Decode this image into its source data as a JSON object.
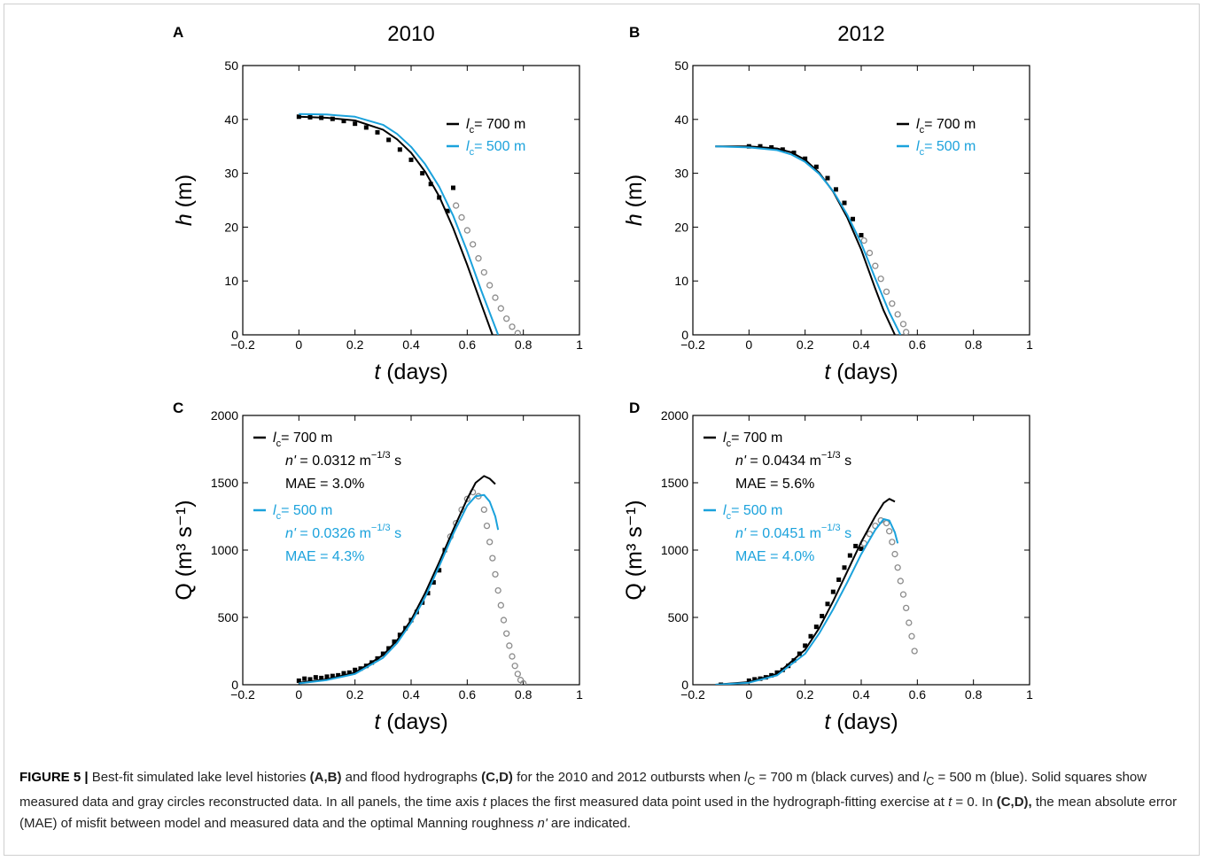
{
  "colors": {
    "black_curve": "#000000",
    "blue_curve": "#1ba2dc",
    "reconstructed": "#8c8c8c",
    "measured": "#000000"
  },
  "caption": {
    "label": "FIGURE 5 |",
    "s1": " Best-fit simulated lake level histories ",
    "p1": "(A,B)",
    "s2": " and flood hydrographs ",
    "p2": "(C,D)",
    "s3": " for the 2010 and 2012 outbursts when ",
    "l1": "l",
    "sub1": "C",
    "s4": " = 700 m (black curves) and ",
    "l2": "l",
    "sub2": "C",
    "s5": " = 500 m (blue). Solid squares show measured data and gray circles reconstructed data. In all panels, the time axis ",
    "t1": "t",
    "s6": " places the first measured data point used in the hydrograph-fitting exercise at ",
    "t2": "t",
    "s7": " = 0. In ",
    "p3": "(C,D),",
    "s8": " the mean absolute error (MAE) of misfit between model and measured data and the optimal Manning roughness ",
    "n1": "n'",
    "s9": " are indicated."
  },
  "chart_data": [
    {
      "panel": "A",
      "title": "2010",
      "type": "line",
      "xlabel_italic": "t",
      "xlabel_rest": " (days)",
      "ylabel_italic": "h",
      "ylabel_rest": " (m)",
      "xlim": [
        -0.2,
        1
      ],
      "ylim": [
        0,
        50
      ],
      "xticks": [
        "−0.2",
        "0",
        "0.2",
        "0.4",
        "0.6",
        "0.8",
        "1"
      ],
      "xtick_values": [
        -0.2,
        0,
        0.2,
        0.4,
        0.6,
        0.8,
        1
      ],
      "yticks": [
        "0",
        "10",
        "20",
        "30",
        "40",
        "50"
      ],
      "ytick_values": [
        0,
        10,
        20,
        30,
        40,
        50
      ],
      "legend": [
        {
          "l": "l",
          "sub": "c",
          "rest": "= 700 m",
          "color": "#000000"
        },
        {
          "l": "l",
          "sub": "c",
          "rest": "= 500 m",
          "color": "#1ba2dc"
        }
      ],
      "series": [
        {
          "name": "l_c = 700 m",
          "color": "#000000",
          "x": [
            0,
            0.1,
            0.2,
            0.3,
            0.35,
            0.4,
            0.45,
            0.5,
            0.55,
            0.6,
            0.65,
            0.69
          ],
          "y": [
            40.5,
            40.3,
            39.8,
            38.1,
            36.3,
            33.8,
            30.3,
            25.7,
            19.8,
            13,
            5.7,
            0
          ]
        },
        {
          "name": "l_c = 500 m",
          "color": "#1ba2dc",
          "x": [
            0,
            0.1,
            0.2,
            0.3,
            0.35,
            0.4,
            0.45,
            0.5,
            0.55,
            0.6,
            0.65,
            0.71
          ],
          "y": [
            41,
            40.9,
            40.5,
            39,
            37.3,
            34.9,
            31.7,
            27.5,
            22.1,
            15.5,
            8.2,
            0
          ]
        }
      ],
      "measured": {
        "x": [
          0,
          0.04,
          0.08,
          0.12,
          0.16,
          0.2,
          0.24,
          0.28,
          0.32,
          0.36,
          0.4,
          0.44,
          0.47,
          0.5,
          0.53,
          0.55
        ],
        "y": [
          40.5,
          40.4,
          40.3,
          40.1,
          39.7,
          39.2,
          38.5,
          37.6,
          36.2,
          34.4,
          32.5,
          30,
          28,
          25.5,
          23,
          27.3
        ]
      },
      "reconstructed": {
        "x": [
          0.56,
          0.58,
          0.6,
          0.62,
          0.64,
          0.66,
          0.68,
          0.7,
          0.72,
          0.74,
          0.76,
          0.78
        ],
        "y": [
          24,
          21.8,
          19.4,
          16.8,
          14.2,
          11.6,
          9.2,
          6.9,
          4.9,
          3,
          1.5,
          0.3
        ]
      }
    },
    {
      "panel": "B",
      "title": "2012",
      "type": "line",
      "xlabel_italic": "t",
      "xlabel_rest": " (days)",
      "ylabel_italic": "h",
      "ylabel_rest": " (m)",
      "xlim": [
        -0.2,
        1
      ],
      "ylim": [
        0,
        50
      ],
      "xticks": [
        "−0.2",
        "0",
        "0.2",
        "0.4",
        "0.6",
        "0.8",
        "1"
      ],
      "xtick_values": [
        -0.2,
        0,
        0.2,
        0.4,
        0.6,
        0.8,
        1
      ],
      "yticks": [
        "0",
        "10",
        "20",
        "30",
        "40",
        "50"
      ],
      "ytick_values": [
        0,
        10,
        20,
        30,
        40,
        50
      ],
      "legend": [
        {
          "l": "l",
          "sub": "c",
          "rest": "= 700 m",
          "color": "#000000"
        },
        {
          "l": "l",
          "sub": "c",
          "rest": "= 500 m",
          "color": "#1ba2dc"
        }
      ],
      "series": [
        {
          "name": "l_c = 700 m",
          "color": "#000000",
          "x": [
            -0.12,
            0,
            0.1,
            0.15,
            0.2,
            0.25,
            0.3,
            0.35,
            0.4,
            0.45,
            0.48,
            0.52
          ],
          "y": [
            35,
            35,
            34.6,
            33.9,
            32.5,
            30.1,
            26.6,
            21.8,
            15.8,
            8.6,
            4.5,
            0
          ]
        },
        {
          "name": "l_c = 500 m",
          "color": "#1ba2dc",
          "x": [
            -0.12,
            0,
            0.1,
            0.15,
            0.2,
            0.25,
            0.3,
            0.35,
            0.4,
            0.45,
            0.5,
            0.54
          ],
          "y": [
            35,
            34.8,
            34.3,
            33.5,
            32.1,
            29.9,
            26.7,
            22.3,
            17,
            10.5,
            4.2,
            0
          ]
        }
      ],
      "measured": {
        "x": [
          0,
          0.04,
          0.08,
          0.12,
          0.16,
          0.2,
          0.24,
          0.28,
          0.31,
          0.34,
          0.37,
          0.4
        ],
        "y": [
          35,
          35,
          34.8,
          34.4,
          33.8,
          32.7,
          31.2,
          29.1,
          27,
          24.5,
          21.5,
          18.5
        ]
      },
      "reconstructed": {
        "x": [
          0.41,
          0.43,
          0.45,
          0.47,
          0.49,
          0.51,
          0.53,
          0.55,
          0.56
        ],
        "y": [
          17.5,
          15.2,
          12.8,
          10.4,
          8,
          5.8,
          3.8,
          2,
          0.5
        ]
      }
    },
    {
      "panel": "C",
      "type": "line",
      "xlabel_italic": "t",
      "xlabel_rest": " (days)",
      "ylabel": "Q (m³ s⁻¹)",
      "xlim": [
        -0.2,
        1
      ],
      "ylim": [
        0,
        2000
      ],
      "xticks": [
        "−0.2",
        "0",
        "0.2",
        "0.4",
        "0.6",
        "0.8",
        "1"
      ],
      "xtick_values": [
        -0.2,
        0,
        0.2,
        0.4,
        0.6,
        0.8,
        1
      ],
      "yticks": [
        "0",
        "500",
        "1000",
        "1500",
        "2000"
      ],
      "ytick_values": [
        0,
        500,
        1000,
        1500,
        2000
      ],
      "annotations": [
        {
          "l": "l",
          "sub": "c",
          "rest": "= 700 m",
          "n": "n'",
          "n_val": " = 0.0312 m",
          "n_exp": "−1/3",
          "n_unit": " s",
          "mae": "MAE = 3.0%",
          "color": "#000000"
        },
        {
          "l": "l",
          "sub": "c",
          "rest": "= 500 m",
          "n": "n'",
          "n_val": " = 0.0326 m",
          "n_exp": "−1/3",
          "n_unit": " s",
          "mae": "MAE = 4.3%",
          "color": "#1ba2dc"
        }
      ],
      "series": [
        {
          "name": "l_c = 700 m",
          "color": "#000000",
          "x": [
            0,
            0.1,
            0.2,
            0.3,
            0.35,
            0.4,
            0.45,
            0.5,
            0.55,
            0.6,
            0.63,
            0.66,
            0.68,
            0.7
          ],
          "y": [
            15,
            40,
            90,
            220,
            330,
            480,
            680,
            910,
            1150,
            1380,
            1500,
            1550,
            1530,
            1490
          ]
        },
        {
          "name": "l_c = 500 m",
          "color": "#1ba2dc",
          "x": [
            0,
            0.1,
            0.2,
            0.3,
            0.35,
            0.4,
            0.45,
            0.5,
            0.55,
            0.6,
            0.63,
            0.66,
            0.68,
            0.7,
            0.71
          ],
          "y": [
            10,
            35,
            80,
            200,
            310,
            460,
            650,
            880,
            1120,
            1330,
            1400,
            1410,
            1360,
            1250,
            1150
          ]
        }
      ],
      "measured": {
        "x": [
          0,
          0.02,
          0.04,
          0.06,
          0.08,
          0.1,
          0.12,
          0.14,
          0.16,
          0.18,
          0.2,
          0.22,
          0.24,
          0.26,
          0.28,
          0.3,
          0.32,
          0.34,
          0.36,
          0.38,
          0.4,
          0.42,
          0.44,
          0.46,
          0.48,
          0.5,
          0.52
        ],
        "y": [
          30,
          45,
          40,
          55,
          50,
          60,
          65,
          70,
          85,
          90,
          110,
          120,
          140,
          165,
          195,
          230,
          270,
          320,
          370,
          420,
          480,
          540,
          610,
          680,
          760,
          850,
          1000
        ]
      },
      "reconstructed": {
        "x": [
          0.54,
          0.56,
          0.58,
          0.6,
          0.62,
          0.64,
          0.66,
          0.67,
          0.68,
          0.69,
          0.7,
          0.71,
          0.72,
          0.73,
          0.74,
          0.75,
          0.76,
          0.77,
          0.78,
          0.79,
          0.8
        ],
        "y": [
          1100,
          1200,
          1300,
          1380,
          1430,
          1400,
          1300,
          1180,
          1060,
          940,
          820,
          700,
          590,
          480,
          380,
          290,
          210,
          140,
          80,
          35,
          10
        ]
      }
    },
    {
      "panel": "D",
      "type": "line",
      "xlabel_italic": "t",
      "xlabel_rest": " (days)",
      "ylabel": "Q (m³ s⁻¹)",
      "xlim": [
        -0.2,
        1
      ],
      "ylim": [
        0,
        2000
      ],
      "xticks": [
        "−0.2",
        "0",
        "0.2",
        "0.4",
        "0.6",
        "0.8",
        "1"
      ],
      "xtick_values": [
        -0.2,
        0,
        0.2,
        0.4,
        0.6,
        0.8,
        1
      ],
      "yticks": [
        "0",
        "500",
        "1000",
        "1500",
        "2000"
      ],
      "ytick_values": [
        0,
        500,
        1000,
        1500,
        2000
      ],
      "annotations": [
        {
          "l": "l",
          "sub": "c",
          "rest": "= 700 m",
          "n": "n'",
          "n_val": " = 0.0434 m",
          "n_exp": "−1/3",
          "n_unit": " s",
          "mae": "MAE = 5.6%",
          "color": "#000000"
        },
        {
          "l": "l",
          "sub": "c",
          "rest": "= 500 m",
          "n": "n'",
          "n_val": " = 0.0451 m",
          "n_exp": "−1/3",
          "n_unit": " s",
          "mae": "MAE = 4.0%",
          "color": "#1ba2dc"
        }
      ],
      "series": [
        {
          "name": "l_c = 700 m",
          "color": "#000000",
          "x": [
            -0.12,
            0,
            0.1,
            0.2,
            0.25,
            0.3,
            0.35,
            0.4,
            0.45,
            0.48,
            0.5,
            0.52
          ],
          "y": [
            0,
            20,
            80,
            260,
            420,
            620,
            840,
            1060,
            1250,
            1350,
            1380,
            1360
          ]
        },
        {
          "name": "l_c = 500 m",
          "color": "#1ba2dc",
          "x": [
            -0.12,
            0,
            0.1,
            0.2,
            0.25,
            0.3,
            0.35,
            0.4,
            0.45,
            0.48,
            0.5,
            0.52,
            0.53
          ],
          "y": [
            0,
            15,
            70,
            230,
            380,
            560,
            760,
            970,
            1150,
            1230,
            1220,
            1130,
            1050
          ]
        }
      ],
      "measured": {
        "x": [
          -0.1,
          0,
          0.02,
          0.04,
          0.06,
          0.08,
          0.1,
          0.12,
          0.14,
          0.16,
          0.18,
          0.2,
          0.22,
          0.24,
          0.26,
          0.28,
          0.3,
          0.32,
          0.34,
          0.36,
          0.38,
          0.4
        ],
        "y": [
          0,
          30,
          40,
          45,
          55,
          70,
          90,
          110,
          140,
          180,
          230,
          290,
          360,
          430,
          510,
          600,
          690,
          780,
          870,
          960,
          1030,
          1010
        ]
      },
      "reconstructed": {
        "x": [
          0.41,
          0.43,
          0.45,
          0.47,
          0.49,
          0.5,
          0.51,
          0.52,
          0.53,
          0.54,
          0.55,
          0.56,
          0.57,
          0.58,
          0.59
        ],
        "y": [
          1050,
          1120,
          1180,
          1220,
          1200,
          1140,
          1060,
          970,
          870,
          770,
          670,
          570,
          460,
          360,
          250
        ]
      }
    }
  ]
}
